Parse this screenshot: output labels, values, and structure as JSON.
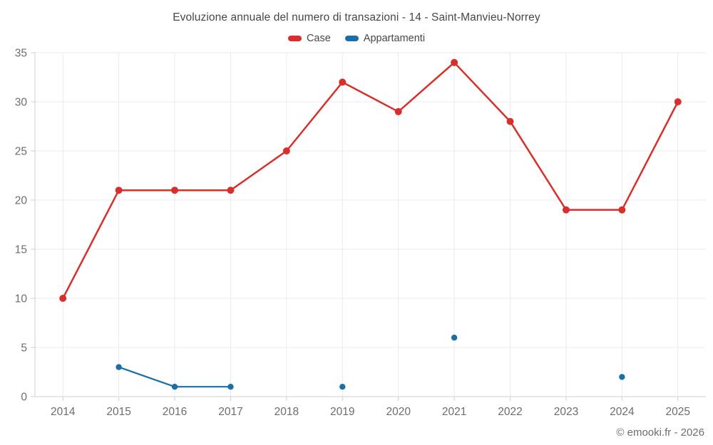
{
  "title": "Evoluzione annuale del numero di transazioni - 14 - Saint-Manvieu-Norrey",
  "footer": "© emooki.fr - 2026",
  "colors": {
    "grid": "#ebebeb",
    "axis": "#cfcfcf",
    "tick_text": "#6d6d6d",
    "title_text": "#474747"
  },
  "chart_data": {
    "type": "line",
    "title": "Evoluzione annuale del numero di transazioni - 14 - Saint-Manvieu-Norrey",
    "categories": [
      "2014",
      "2015",
      "2016",
      "2017",
      "2018",
      "2019",
      "2020",
      "2021",
      "2022",
      "2023",
      "2024",
      "2025"
    ],
    "series": [
      {
        "name": "Case",
        "color": "#d7302c",
        "values": [
          10,
          21,
          21,
          21,
          25,
          32,
          29,
          34,
          28,
          19,
          19,
          30
        ]
      },
      {
        "name": "Appartamenti",
        "color": "#1a6fa6",
        "values": [
          null,
          3,
          1,
          1,
          null,
          1,
          null,
          6,
          null,
          null,
          2,
          null
        ]
      }
    ],
    "xlabel": "",
    "ylabel": "",
    "ylim": [
      0,
      35
    ],
    "ytick_step": 5,
    "grid": true,
    "legend_position": "top"
  }
}
